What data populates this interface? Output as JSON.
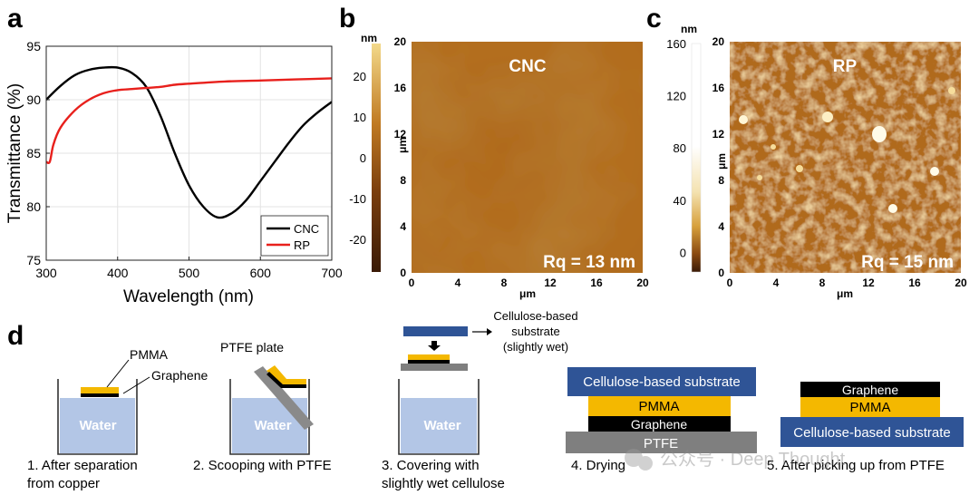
{
  "panels": {
    "a": "a",
    "b": "b",
    "c": "c",
    "d": "d"
  },
  "chart_data": {
    "type": "line",
    "xlabel": "Wavelength (nm)",
    "ylabel": "Transmittance (%)",
    "xlim": [
      300,
      700
    ],
    "ylim": [
      75,
      95
    ],
    "xticks": [
      "300",
      "400",
      "500",
      "600",
      "700"
    ],
    "yticks": [
      "75",
      "80",
      "85",
      "90",
      "95"
    ],
    "legend": "bottom-right",
    "series": [
      {
        "name": "CNC",
        "color": "#000000",
        "x": [
          300,
          320,
          340,
          360,
          380,
          400,
          420,
          440,
          460,
          480,
          500,
          520,
          540,
          560,
          580,
          600,
          620,
          640,
          660,
          680,
          700
        ],
        "values": [
          90.0,
          91.3,
          92.3,
          92.8,
          93.0,
          93.0,
          92.5,
          91.2,
          88.5,
          85.0,
          82.0,
          80.0,
          79.0,
          79.4,
          80.6,
          82.4,
          84.2,
          86.0,
          87.6,
          88.8,
          89.8
        ]
      },
      {
        "name": "RP",
        "color": "#e8201c",
        "x": [
          300,
          305,
          310,
          320,
          340,
          360,
          380,
          400,
          420,
          440,
          460,
          480,
          500,
          550,
          600,
          650,
          700
        ],
        "values": [
          84.2,
          84.2,
          85.8,
          87.4,
          89.0,
          90.0,
          90.6,
          90.9,
          91.0,
          91.1,
          91.2,
          91.4,
          91.5,
          91.7,
          91.8,
          91.9,
          92.0
        ]
      }
    ]
  },
  "afm_b": {
    "title": "CNC",
    "rq": "Rq = 13 nm",
    "unit": "nm",
    "colorbar_ticks": [
      "20",
      "10",
      "0",
      "-10",
      "-20"
    ],
    "colorbar_range": [
      -28,
      28
    ],
    "axis_ticks": [
      "0",
      "4",
      "8",
      "12",
      "16",
      "20"
    ],
    "axis_label": "μm"
  },
  "afm_c": {
    "title": "RP",
    "rq": "Rq = 15 nm",
    "unit": "nm",
    "colorbar_ticks": [
      "160",
      "120",
      "80",
      "40",
      "0"
    ],
    "colorbar_range": [
      -15,
      160
    ],
    "axis_ticks": [
      "0",
      "4",
      "8",
      "12",
      "16",
      "20"
    ],
    "axis_label": "μm"
  },
  "colors": {
    "water": "#b3c6e6",
    "pmma": "#f4b800",
    "graphene": "#000000",
    "ptfe": "#7f7f7f",
    "cellulose": "#2f5496"
  },
  "steps": {
    "water": "Water",
    "pmma": "PMMA",
    "graphene": "Graphene",
    "ptfe_plate": "PTFE plate",
    "cellulose_note": [
      "Cellulose-based",
      "substrate",
      "(slightly wet)"
    ],
    "stack4": [
      "Cellulose-based substrate",
      "PMMA",
      "Graphene",
      "PTFE"
    ],
    "stack5": [
      "Graphene",
      "PMMA",
      "Cellulose-based substrate"
    ],
    "captions": [
      [
        "1. After separation",
        "from copper"
      ],
      [
        "2. Scooping with PTFE"
      ],
      [
        "3. Covering with",
        "slightly wet cellulose"
      ],
      [
        "4. Drying"
      ],
      [
        "5. After picking up from PTFE"
      ]
    ]
  },
  "watermark": "公众号 · Deep Thought"
}
